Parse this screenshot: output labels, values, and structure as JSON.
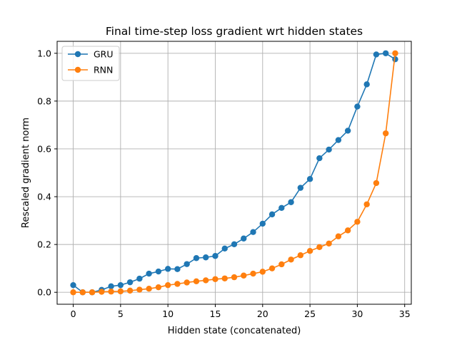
{
  "chart_data": {
    "type": "line",
    "title": "Final time-step loss gradient wrt hidden states",
    "xlabel": "Hidden state (concatenated)",
    "ylabel": "Rescaled gradient norm",
    "xlim": [
      -1.7,
      35.7
    ],
    "ylim": [
      -0.05,
      1.05
    ],
    "xticks": [
      0,
      5,
      10,
      15,
      20,
      25,
      30,
      35
    ],
    "yticks": [
      0.0,
      0.2,
      0.4,
      0.6,
      0.8,
      1.0
    ],
    "xtick_labels": [
      "0",
      "5",
      "10",
      "15",
      "20",
      "25",
      "30",
      "35"
    ],
    "ytick_labels": [
      "0.0",
      "0.2",
      "0.4",
      "0.6",
      "0.8",
      "1.0"
    ],
    "grid": true,
    "legend_position": "top-left",
    "x": [
      0,
      1,
      2,
      3,
      4,
      5,
      6,
      7,
      8,
      9,
      10,
      11,
      12,
      13,
      14,
      15,
      16,
      17,
      18,
      19,
      20,
      21,
      22,
      23,
      24,
      25,
      26,
      27,
      28,
      29,
      30,
      31,
      32,
      33,
      34
    ],
    "series": [
      {
        "name": "GRU",
        "color": "#1f77b4",
        "values": [
          0.03,
          0.0,
          0.0,
          0.01,
          0.025,
          0.03,
          0.042,
          0.057,
          0.078,
          0.087,
          0.098,
          0.097,
          0.118,
          0.143,
          0.146,
          0.152,
          0.183,
          0.201,
          0.225,
          0.252,
          0.287,
          0.326,
          0.353,
          0.377,
          0.437,
          0.474,
          0.561,
          0.597,
          0.637,
          0.676,
          0.777,
          0.87,
          0.995,
          1.0,
          0.975
        ]
      },
      {
        "name": "RNN",
        "color": "#ff7f0e",
        "values": [
          0.0,
          0.0,
          0.0,
          0.002,
          0.003,
          0.004,
          0.007,
          0.011,
          0.015,
          0.021,
          0.03,
          0.035,
          0.041,
          0.046,
          0.05,
          0.055,
          0.058,
          0.063,
          0.07,
          0.078,
          0.086,
          0.1,
          0.117,
          0.137,
          0.155,
          0.173,
          0.189,
          0.204,
          0.234,
          0.259,
          0.295,
          0.368,
          0.457,
          0.665,
          1.0
        ]
      }
    ]
  }
}
